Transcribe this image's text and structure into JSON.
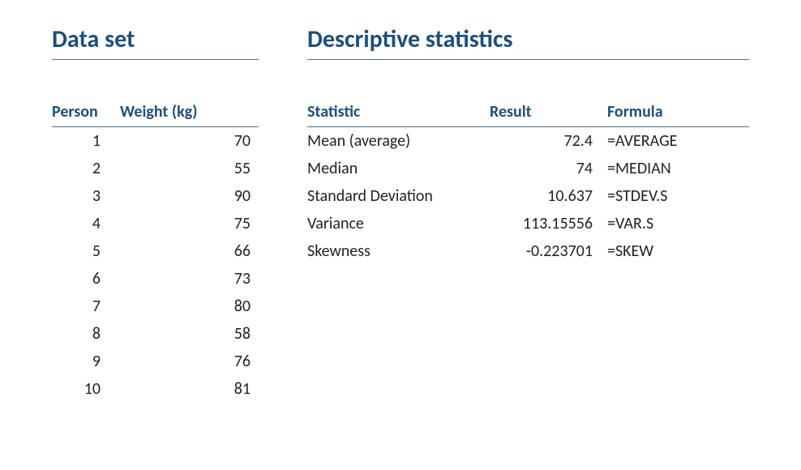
{
  "styling": {
    "page_bg": "#ffffff",
    "title_color": "#1f4e79",
    "header_color": "#1f4e79",
    "text_color": "#222222",
    "border_color": "#4f6f8f",
    "title_fontsize": 30,
    "header_fontsize": 20,
    "body_fontsize": 20,
    "font_family": "Calibri"
  },
  "dataset": {
    "title": "Data set",
    "columns": [
      "Person",
      "Weight (kg)"
    ],
    "rows": [
      {
        "person": "1",
        "weight": "70"
      },
      {
        "person": "2",
        "weight": "55"
      },
      {
        "person": "3",
        "weight": "90"
      },
      {
        "person": "4",
        "weight": "75"
      },
      {
        "person": "5",
        "weight": "66"
      },
      {
        "person": "6",
        "weight": "73"
      },
      {
        "person": "7",
        "weight": "80"
      },
      {
        "person": "8",
        "weight": "58"
      },
      {
        "person": "9",
        "weight": "76"
      },
      {
        "person": "10",
        "weight": "81"
      }
    ]
  },
  "statistics": {
    "title": "Descriptive statistics",
    "columns": [
      "Statistic",
      "Result",
      "Formula"
    ],
    "rows": [
      {
        "statistic": "Mean (average)",
        "result": "72.4",
        "formula": "=AVERAGE"
      },
      {
        "statistic": "Median",
        "result": "74",
        "formula": "=MEDIAN"
      },
      {
        "statistic": "Standard Deviation",
        "result": "10.637",
        "formula": "=STDEV.S"
      },
      {
        "statistic": "Variance",
        "result": "113.15556",
        "formula": "=VAR.S"
      },
      {
        "statistic": "Skewness",
        "result": "-0.223701",
        "formula": "=SKEW"
      }
    ]
  }
}
